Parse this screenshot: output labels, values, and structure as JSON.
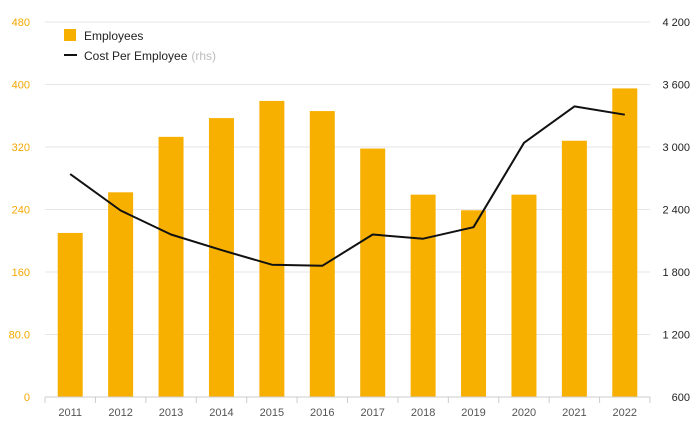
{
  "chart_data": {
    "type": "bar",
    "categories": [
      "2011",
      "2012",
      "2013",
      "2014",
      "2015",
      "2016",
      "2017",
      "2018",
      "2019",
      "2020",
      "2021",
      "2022"
    ],
    "series": [
      {
        "name": "Employees",
        "type": "bar",
        "axis": "left",
        "color": "#f7b000",
        "values": [
          210,
          262,
          333,
          357,
          379,
          366,
          318,
          259,
          239,
          259,
          328,
          395
        ]
      },
      {
        "name": "Cost Per Employee",
        "name_suffix": "(rhs)",
        "type": "line",
        "axis": "right",
        "color": "#111111",
        "values": [
          2740,
          2390,
          2160,
          2010,
          1870,
          1860,
          2160,
          2120,
          2230,
          3040,
          3390,
          3310
        ]
      }
    ],
    "y_left": {
      "ylim": [
        0,
        480
      ],
      "ticks": [
        0,
        80,
        160,
        240,
        320,
        400,
        480
      ],
      "tick_labels": [
        "0",
        "80.0",
        "160",
        "240",
        "320",
        "400",
        "480"
      ],
      "color": "#f5a800"
    },
    "y_right": {
      "ylim": [
        600,
        4200
      ],
      "ticks": [
        600,
        1200,
        1800,
        2400,
        3000,
        3600,
        4200
      ],
      "tick_labels": [
        "600",
        "1 200",
        "1 800",
        "2 400",
        "3 000",
        "3 600",
        "4 200"
      ]
    },
    "grid": true,
    "legend_position": "top-left"
  }
}
